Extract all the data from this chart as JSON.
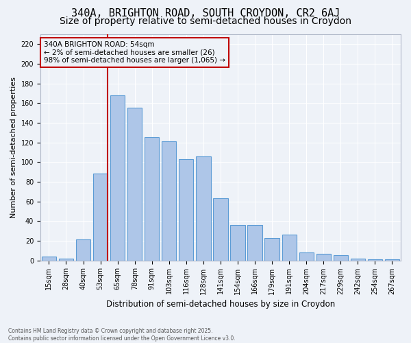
{
  "title1": "340A, BRIGHTON ROAD, SOUTH CROYDON, CR2 6AJ",
  "title2": "Size of property relative to semi-detached houses in Croydon",
  "xlabel": "Distribution of semi-detached houses by size in Croydon",
  "ylabel": "Number of semi-detached properties",
  "categories": [
    "15sqm",
    "28sqm",
    "40sqm",
    "53sqm",
    "65sqm",
    "78sqm",
    "91sqm",
    "103sqm",
    "116sqm",
    "128sqm",
    "141sqm",
    "154sqm",
    "166sqm",
    "179sqm",
    "191sqm",
    "204sqm",
    "217sqm",
    "229sqm",
    "242sqm",
    "254sqm",
    "267sqm"
  ],
  "values": [
    4,
    2,
    21,
    88,
    168,
    155,
    125,
    121,
    103,
    106,
    63,
    36,
    36,
    23,
    26,
    8,
    7,
    5,
    2,
    1,
    1
  ],
  "bar_color": "#aec6e8",
  "bar_edge_color": "#5b9bd5",
  "highlight_color": "#c00000",
  "vline_bar_index": 3,
  "annotation_title": "340A BRIGHTON ROAD: 54sqm",
  "annotation_line1": "← 2% of semi-detached houses are smaller (26)",
  "annotation_line2": "98% of semi-detached houses are larger (1,065) →",
  "footer1": "Contains HM Land Registry data © Crown copyright and database right 2025.",
  "footer2": "Contains public sector information licensed under the Open Government Licence v3.0.",
  "ylim_max": 230,
  "yticks": [
    0,
    20,
    40,
    60,
    80,
    100,
    120,
    140,
    160,
    180,
    200,
    220
  ],
  "bg_color": "#eef2f8",
  "grid_color": "#ffffff",
  "title1_fontsize": 11,
  "title2_fontsize": 10,
  "tick_fontsize": 7,
  "ylabel_fontsize": 8,
  "xlabel_fontsize": 8.5
}
